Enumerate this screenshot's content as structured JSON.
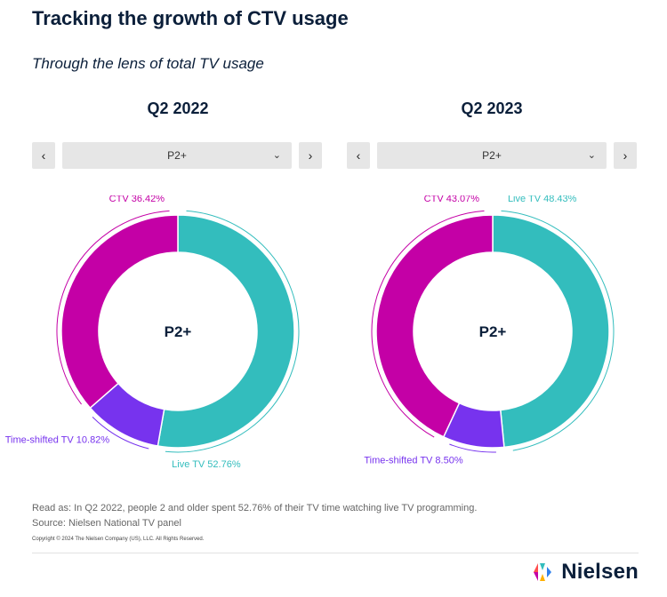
{
  "header": {
    "title": "Tracking the growth of CTV usage",
    "subtitle": "Through the lens of total TV usage"
  },
  "panels": [
    {
      "period": "Q2 2022",
      "selector_value": "P2+",
      "center_label": "P2+"
    },
    {
      "period": "Q2 2023",
      "selector_value": "P2+",
      "center_label": "P2+"
    }
  ],
  "icons": {
    "prev": "chevron-left-icon",
    "next": "chevron-right-icon",
    "dropdown": "chevron-down-icon"
  },
  "colors": {
    "live_tv": "#33bdbd",
    "time_shifted_tv": "#7733ee",
    "ctv": "#c400a6",
    "text": "#0b1f3a"
  },
  "chart_data": [
    {
      "type": "pie",
      "title": "Q2 2022",
      "center_label": "P2+",
      "slices": [
        {
          "label": "Live TV",
          "display": "Live TV 52.76%",
          "value": 52.76
        },
        {
          "label": "Time-shifted TV",
          "display": "Time-shifted TV 10.82%",
          "value": 10.82
        },
        {
          "label": "CTV",
          "display": "CTV 36.42%",
          "value": 36.42
        }
      ]
    },
    {
      "type": "pie",
      "title": "Q2 2023",
      "center_label": "P2+",
      "slices": [
        {
          "label": "Live TV",
          "display": "Live TV 48.43%",
          "value": 48.43
        },
        {
          "label": "Time-shifted TV",
          "display": "Time-shifted TV 8.50%",
          "value": 8.5
        },
        {
          "label": "CTV",
          "display": "CTV 43.07%",
          "value": 43.07
        }
      ]
    }
  ],
  "footer": {
    "read_as": "Read as: In Q2 2022, people 2 and older spent 52.76% of their TV time watching live TV programming.",
    "source": "Source: Nielsen National TV panel",
    "copyright": "Copyright © 2024 The Nielsen Company (US), LLC. All Rights Reserved.",
    "brand": "Nielsen"
  }
}
